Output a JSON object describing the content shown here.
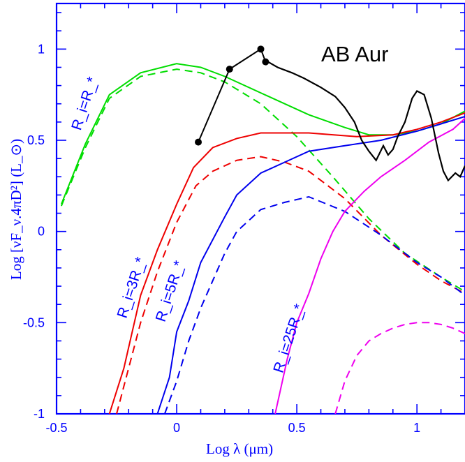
{
  "chart_data": {
    "type": "line",
    "title": "",
    "annotation": "AB Aur",
    "xlabel": "Log λ (μm)",
    "ylabel": "Log [νF_ν.4πD²] (L_⊙)",
    "xlim": [
      -0.5,
      1.2
    ],
    "ylim": [
      -1,
      1.25
    ],
    "grid": false,
    "x_ticks": [
      -0.5,
      0,
      0.5,
      1
    ],
    "x_tick_labels": [
      "-0.5",
      "0",
      "0.5",
      "1"
    ],
    "y_ticks": [
      -1,
      -0.5,
      0,
      0.5,
      1
    ],
    "y_tick_labels": [
      "-1",
      "-0.5",
      "0",
      "0.5",
      "1"
    ],
    "curve_labels": [
      {
        "text": "R_i=R_*",
        "color": "#0000ff",
        "x": -0.4,
        "y": 0.55
      },
      {
        "text": "R_i=3R_*",
        "color": "#0000ff",
        "x": -0.21,
        "y": -0.48
      },
      {
        "text": "R_i=5R_*",
        "color": "#0000ff",
        "x": -0.05,
        "y": -0.5
      },
      {
        "text": "R_i=25R_*",
        "color": "#0000ff",
        "x": 0.44,
        "y": -0.78
      }
    ],
    "series": [
      {
        "color": "#00dd00",
        "style": "solid",
        "x": [
          -0.48,
          -0.38,
          -0.28,
          -0.15,
          0,
          0.1,
          0.2,
          0.35,
          0.55,
          0.7,
          0.8,
          0.9,
          1.0,
          1.1,
          1.2
        ],
        "y": [
          0.15,
          0.48,
          0.75,
          0.87,
          0.92,
          0.9,
          0.85,
          0.76,
          0.64,
          0.57,
          0.53,
          0.53,
          0.55,
          0.59,
          0.66
        ]
      },
      {
        "color": "#00dd00",
        "style": "dashed",
        "x": [
          -0.48,
          -0.38,
          -0.28,
          -0.15,
          0,
          0.1,
          0.2,
          0.35,
          0.5,
          0.65,
          0.8,
          0.95,
          1.1,
          1.2
        ],
        "y": [
          0.14,
          0.46,
          0.73,
          0.85,
          0.89,
          0.87,
          0.82,
          0.7,
          0.52,
          0.3,
          0.07,
          -0.12,
          -0.25,
          -0.33
        ]
      },
      {
        "color": "#ee0000",
        "style": "solid",
        "x": [
          -0.28,
          -0.22,
          -0.15,
          -0.08,
          0,
          0.07,
          0.15,
          0.25,
          0.35,
          0.55,
          0.75,
          0.9,
          1.0,
          1.1,
          1.2
        ],
        "y": [
          -1,
          -0.75,
          -0.35,
          -0.1,
          0.15,
          0.35,
          0.46,
          0.51,
          0.54,
          0.54,
          0.52,
          0.53,
          0.56,
          0.6,
          0.65
        ]
      },
      {
        "color": "#ee0000",
        "style": "dashed",
        "x": [
          -0.25,
          -0.2,
          -0.15,
          -0.08,
          0,
          0.08,
          0.15,
          0.25,
          0.35,
          0.45,
          0.55,
          0.7,
          0.85,
          1.0,
          1.1,
          1.2
        ],
        "y": [
          -1,
          -0.75,
          -0.5,
          -0.22,
          0.05,
          0.25,
          0.33,
          0.39,
          0.41,
          0.38,
          0.33,
          0.18,
          -0.02,
          -0.18,
          -0.27,
          -0.34
        ]
      },
      {
        "color": "#0000ee",
        "style": "solid",
        "x": [
          -0.08,
          -0.03,
          0,
          0.05,
          0.1,
          0.2,
          0.25,
          0.35,
          0.45,
          0.55,
          0.7,
          0.85,
          1.0,
          1.1,
          1.2
        ],
        "y": [
          -1,
          -0.8,
          -0.55,
          -0.38,
          -0.17,
          0.08,
          0.2,
          0.32,
          0.38,
          0.44,
          0.47,
          0.5,
          0.55,
          0.59,
          0.63
        ]
      },
      {
        "color": "#0000ee",
        "style": "dashed",
        "x": [
          -0.05,
          0,
          0.05,
          0.1,
          0.15,
          0.2,
          0.25,
          0.35,
          0.45,
          0.55,
          0.7,
          0.85,
          1.0,
          1.1,
          1.2
        ],
        "y": [
          -1,
          -0.82,
          -0.6,
          -0.42,
          -0.27,
          -0.12,
          0.0,
          0.12,
          0.16,
          0.19,
          0.11,
          -0.02,
          -0.17,
          -0.25,
          -0.35
        ]
      },
      {
        "color": "#ee00ee",
        "style": "solid",
        "x": [
          0.41,
          0.46,
          0.5,
          0.55,
          0.6,
          0.65,
          0.7,
          0.78,
          0.85,
          0.95,
          1.05,
          1.15,
          1.2
        ],
        "y": [
          -1,
          -0.7,
          -0.5,
          -0.34,
          -0.15,
          0.0,
          0.11,
          0.22,
          0.3,
          0.39,
          0.49,
          0.56,
          0.62
        ]
      },
      {
        "color": "#ee00ee",
        "style": "dashed",
        "x": [
          0.66,
          0.7,
          0.75,
          0.8,
          0.85,
          0.9,
          0.95,
          1.0,
          1.05,
          1.1,
          1.15,
          1.2
        ],
        "y": [
          -1,
          -0.82,
          -0.68,
          -0.6,
          -0.56,
          -0.53,
          -0.51,
          -0.5,
          -0.5,
          -0.51,
          -0.53,
          -0.56
        ]
      },
      {
        "color": "#000000",
        "style": "markers-line",
        "x": [
          0.09,
          0.22,
          0.35,
          0.37
        ],
        "y": [
          0.49,
          0.89,
          1.0,
          0.93
        ]
      },
      {
        "color": "#000000",
        "style": "noisy",
        "x": [
          0.38,
          0.42,
          0.48,
          0.53,
          0.6,
          0.66,
          0.7,
          0.74,
          0.77,
          0.8,
          0.83,
          0.86,
          0.88,
          0.9,
          0.92,
          0.95,
          0.98,
          1.0,
          1.03,
          1.06,
          1.09,
          1.11,
          1.13,
          1.16,
          1.18,
          1.2
        ],
        "y": [
          0.93,
          0.9,
          0.87,
          0.84,
          0.79,
          0.74,
          0.68,
          0.6,
          0.5,
          0.44,
          0.39,
          0.47,
          0.42,
          0.45,
          0.52,
          0.6,
          0.73,
          0.77,
          0.75,
          0.62,
          0.43,
          0.33,
          0.28,
          0.32,
          0.3,
          0.36
        ]
      }
    ]
  }
}
